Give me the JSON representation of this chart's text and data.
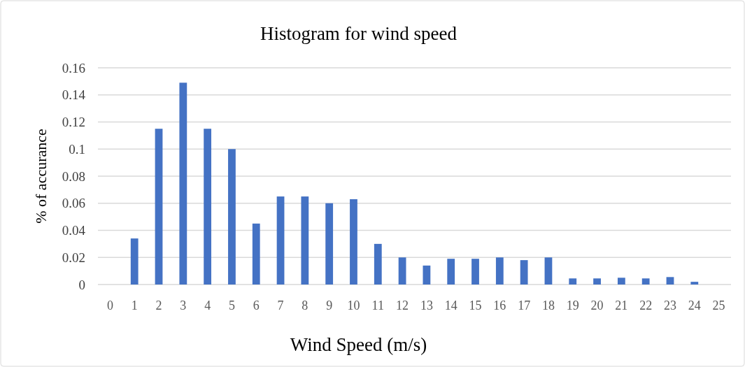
{
  "chart_data": {
    "type": "bar",
    "title": "Histogram for wind speed",
    "xlabel": "Wind Speed (m/s)",
    "ylabel": "% of accurance",
    "x": [
      0,
      1,
      2,
      3,
      4,
      5,
      6,
      7,
      8,
      9,
      10,
      11,
      12,
      13,
      14,
      15,
      16,
      17,
      18,
      19,
      20,
      21,
      22,
      23,
      24,
      25
    ],
    "values": [
      0,
      0.034,
      0.115,
      0.149,
      0.115,
      0.1,
      0.045,
      0.065,
      0.065,
      0.06,
      0.063,
      0.03,
      0.02,
      0.014,
      0.019,
      0.019,
      0.02,
      0.018,
      0.02,
      0.0045,
      0.0045,
      0.005,
      0.0045,
      0.0055,
      0.002,
      0
    ],
    "color": "#4472c4",
    "xlim": [
      -0.5,
      25.5
    ],
    "xticks": [
      0,
      1,
      2,
      3,
      4,
      5,
      6,
      7,
      8,
      9,
      10,
      11,
      12,
      13,
      14,
      15,
      16,
      17,
      18,
      19,
      20,
      21,
      22,
      23,
      24,
      25
    ],
    "ylim": [
      0,
      0.16
    ],
    "yticks": [
      0,
      0.02,
      0.04,
      0.06,
      0.08,
      0.1,
      0.12,
      0.14,
      0.16
    ],
    "grid": "y"
  }
}
